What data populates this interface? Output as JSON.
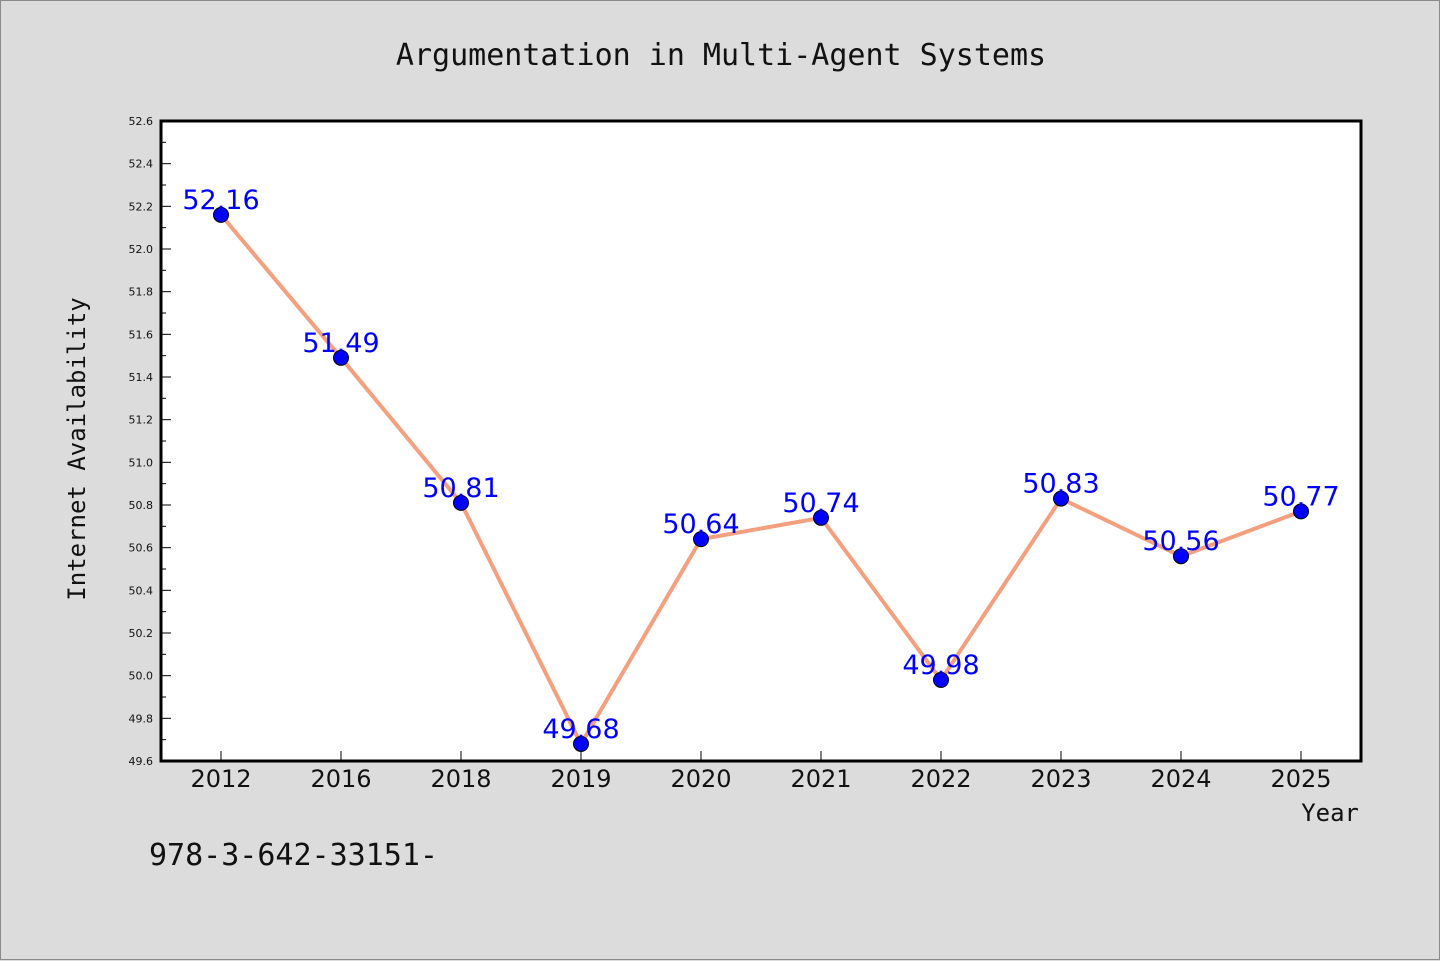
{
  "footer": {
    "text": "978-3-642-33151-"
  },
  "colors": {
    "background": "#dcdcdc",
    "plot_background": "#ffffff",
    "line": "#f4a07f",
    "marker": "#0000ff",
    "data_label": "#0000ff"
  },
  "chart_data": {
    "type": "line",
    "title": "Argumentation in Multi-Agent Systems",
    "xlabel": "Year",
    "ylabel": "Internet Availability",
    "categories": [
      "2012",
      "2016",
      "2018",
      "2019",
      "2020",
      "2021",
      "2022",
      "2023",
      "2024",
      "2025"
    ],
    "series": [
      {
        "values": [
          52.16,
          51.49,
          50.81,
          49.68,
          50.64,
          50.74,
          49.98,
          50.83,
          50.56,
          50.77
        ]
      }
    ],
    "data_labels": [
      "52.16",
      "51.49",
      "50.81",
      "49.68",
      "50.64",
      "50.74",
      "49.98",
      "50.83",
      "50.56",
      "50.77"
    ],
    "ylim": [
      49.6,
      52.6
    ],
    "yticks": [
      "49.6",
      "49.8",
      "50.0",
      "50.2",
      "50.4",
      "50.6",
      "50.8",
      "51.0",
      "51.2",
      "51.4",
      "51.6",
      "51.8",
      "52.0",
      "52.2",
      "52.4",
      "52.6"
    ],
    "grid": false,
    "legend": "none"
  }
}
